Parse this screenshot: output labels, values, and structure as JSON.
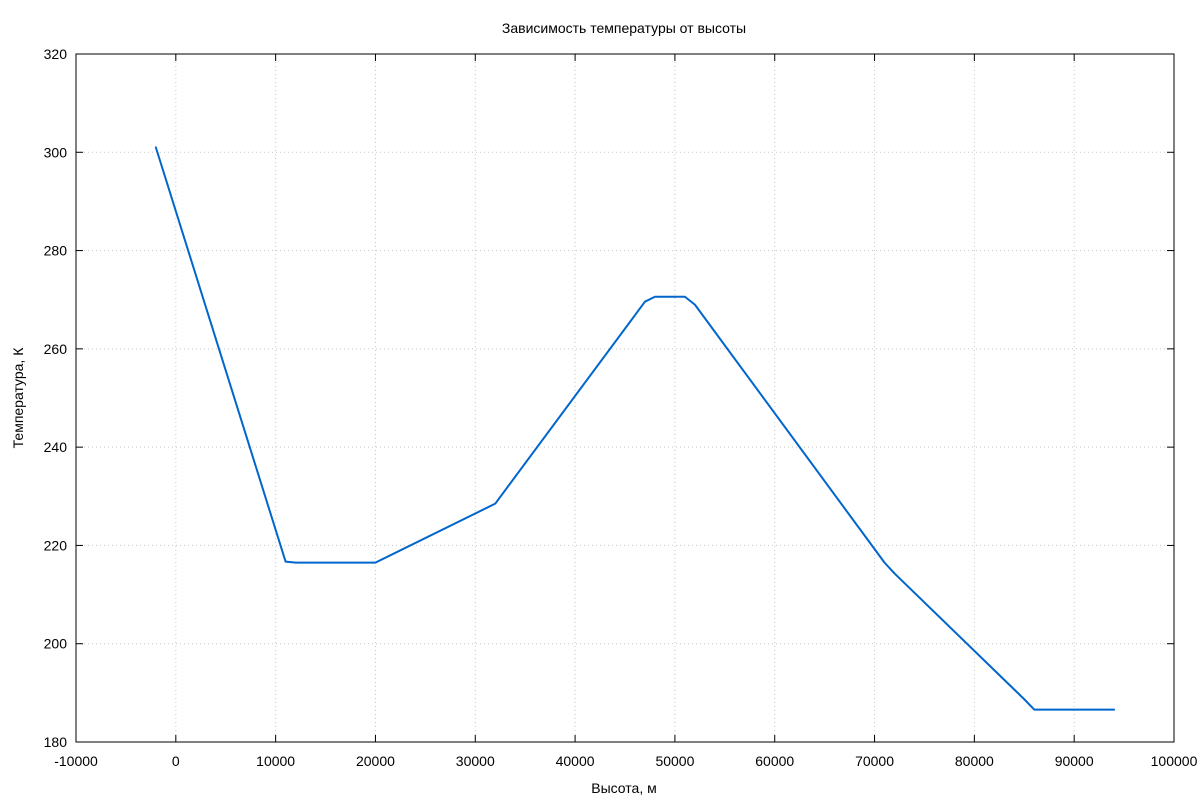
{
  "chart_data": {
    "type": "line",
    "title": "Зависимость температуры от высоты",
    "xlabel": "Высота, м",
    "ylabel": "Температура, К",
    "xlim": [
      -10000,
      100000
    ],
    "ylim": [
      180,
      320
    ],
    "xticks": [
      -10000,
      0,
      10000,
      20000,
      30000,
      40000,
      50000,
      60000,
      70000,
      80000,
      90000,
      100000
    ],
    "xtick_labels": [
      "-10000",
      "0",
      "10000",
      "20000",
      "30000",
      "40000",
      "50000",
      "60000",
      "70000",
      "80000",
      "90000",
      "100000"
    ],
    "yticks": [
      180,
      200,
      220,
      240,
      260,
      280,
      300,
      320
    ],
    "ytick_labels": [
      "180",
      "200",
      "220",
      "240",
      "260",
      "280",
      "300",
      "320"
    ],
    "grid": true,
    "series": [
      {
        "color": "#0066cc",
        "x": [
          -2000,
          11000,
          12000,
          20000,
          32000,
          47000,
          48000,
          51000,
          52000,
          71000,
          72000,
          85000,
          86000,
          94000
        ],
        "y": [
          301.0,
          216.7,
          216.5,
          216.5,
          228.5,
          269.6,
          270.6,
          270.6,
          269.0,
          216.5,
          214.3,
          188.7,
          186.6,
          186.6
        ]
      }
    ]
  }
}
